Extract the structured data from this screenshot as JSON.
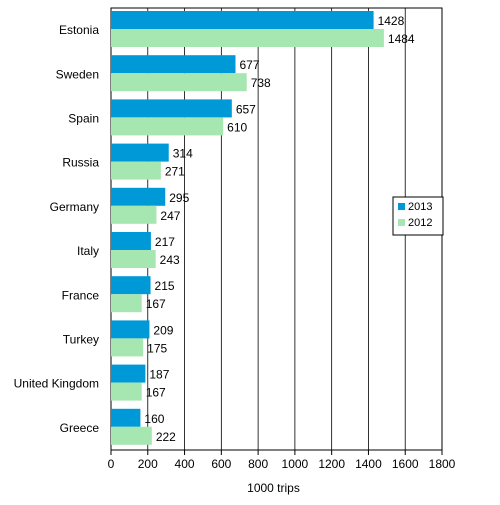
{
  "chart_data": {
    "type": "bar",
    "orientation": "horizontal",
    "categories": [
      "Estonia",
      "Sweden",
      "Spain",
      "Russia",
      "Germany",
      "Italy",
      "France",
      "Turkey",
      "United Kingdom",
      "Greece"
    ],
    "series": [
      {
        "name": "2013",
        "color": "#0099d8",
        "values": [
          1428,
          677,
          657,
          314,
          295,
          217,
          215,
          209,
          187,
          160
        ]
      },
      {
        "name": "2012",
        "color": "#a6e6b0",
        "values": [
          1484,
          738,
          610,
          271,
          247,
          243,
          167,
          175,
          167,
          222
        ]
      }
    ],
    "xlabel": "1000 trips",
    "xlim": [
      0,
      1800
    ],
    "xticks": [
      0,
      200,
      400,
      600,
      800,
      1000,
      1200,
      1400,
      1600,
      1800
    ],
    "grid": true,
    "legend": "right"
  }
}
